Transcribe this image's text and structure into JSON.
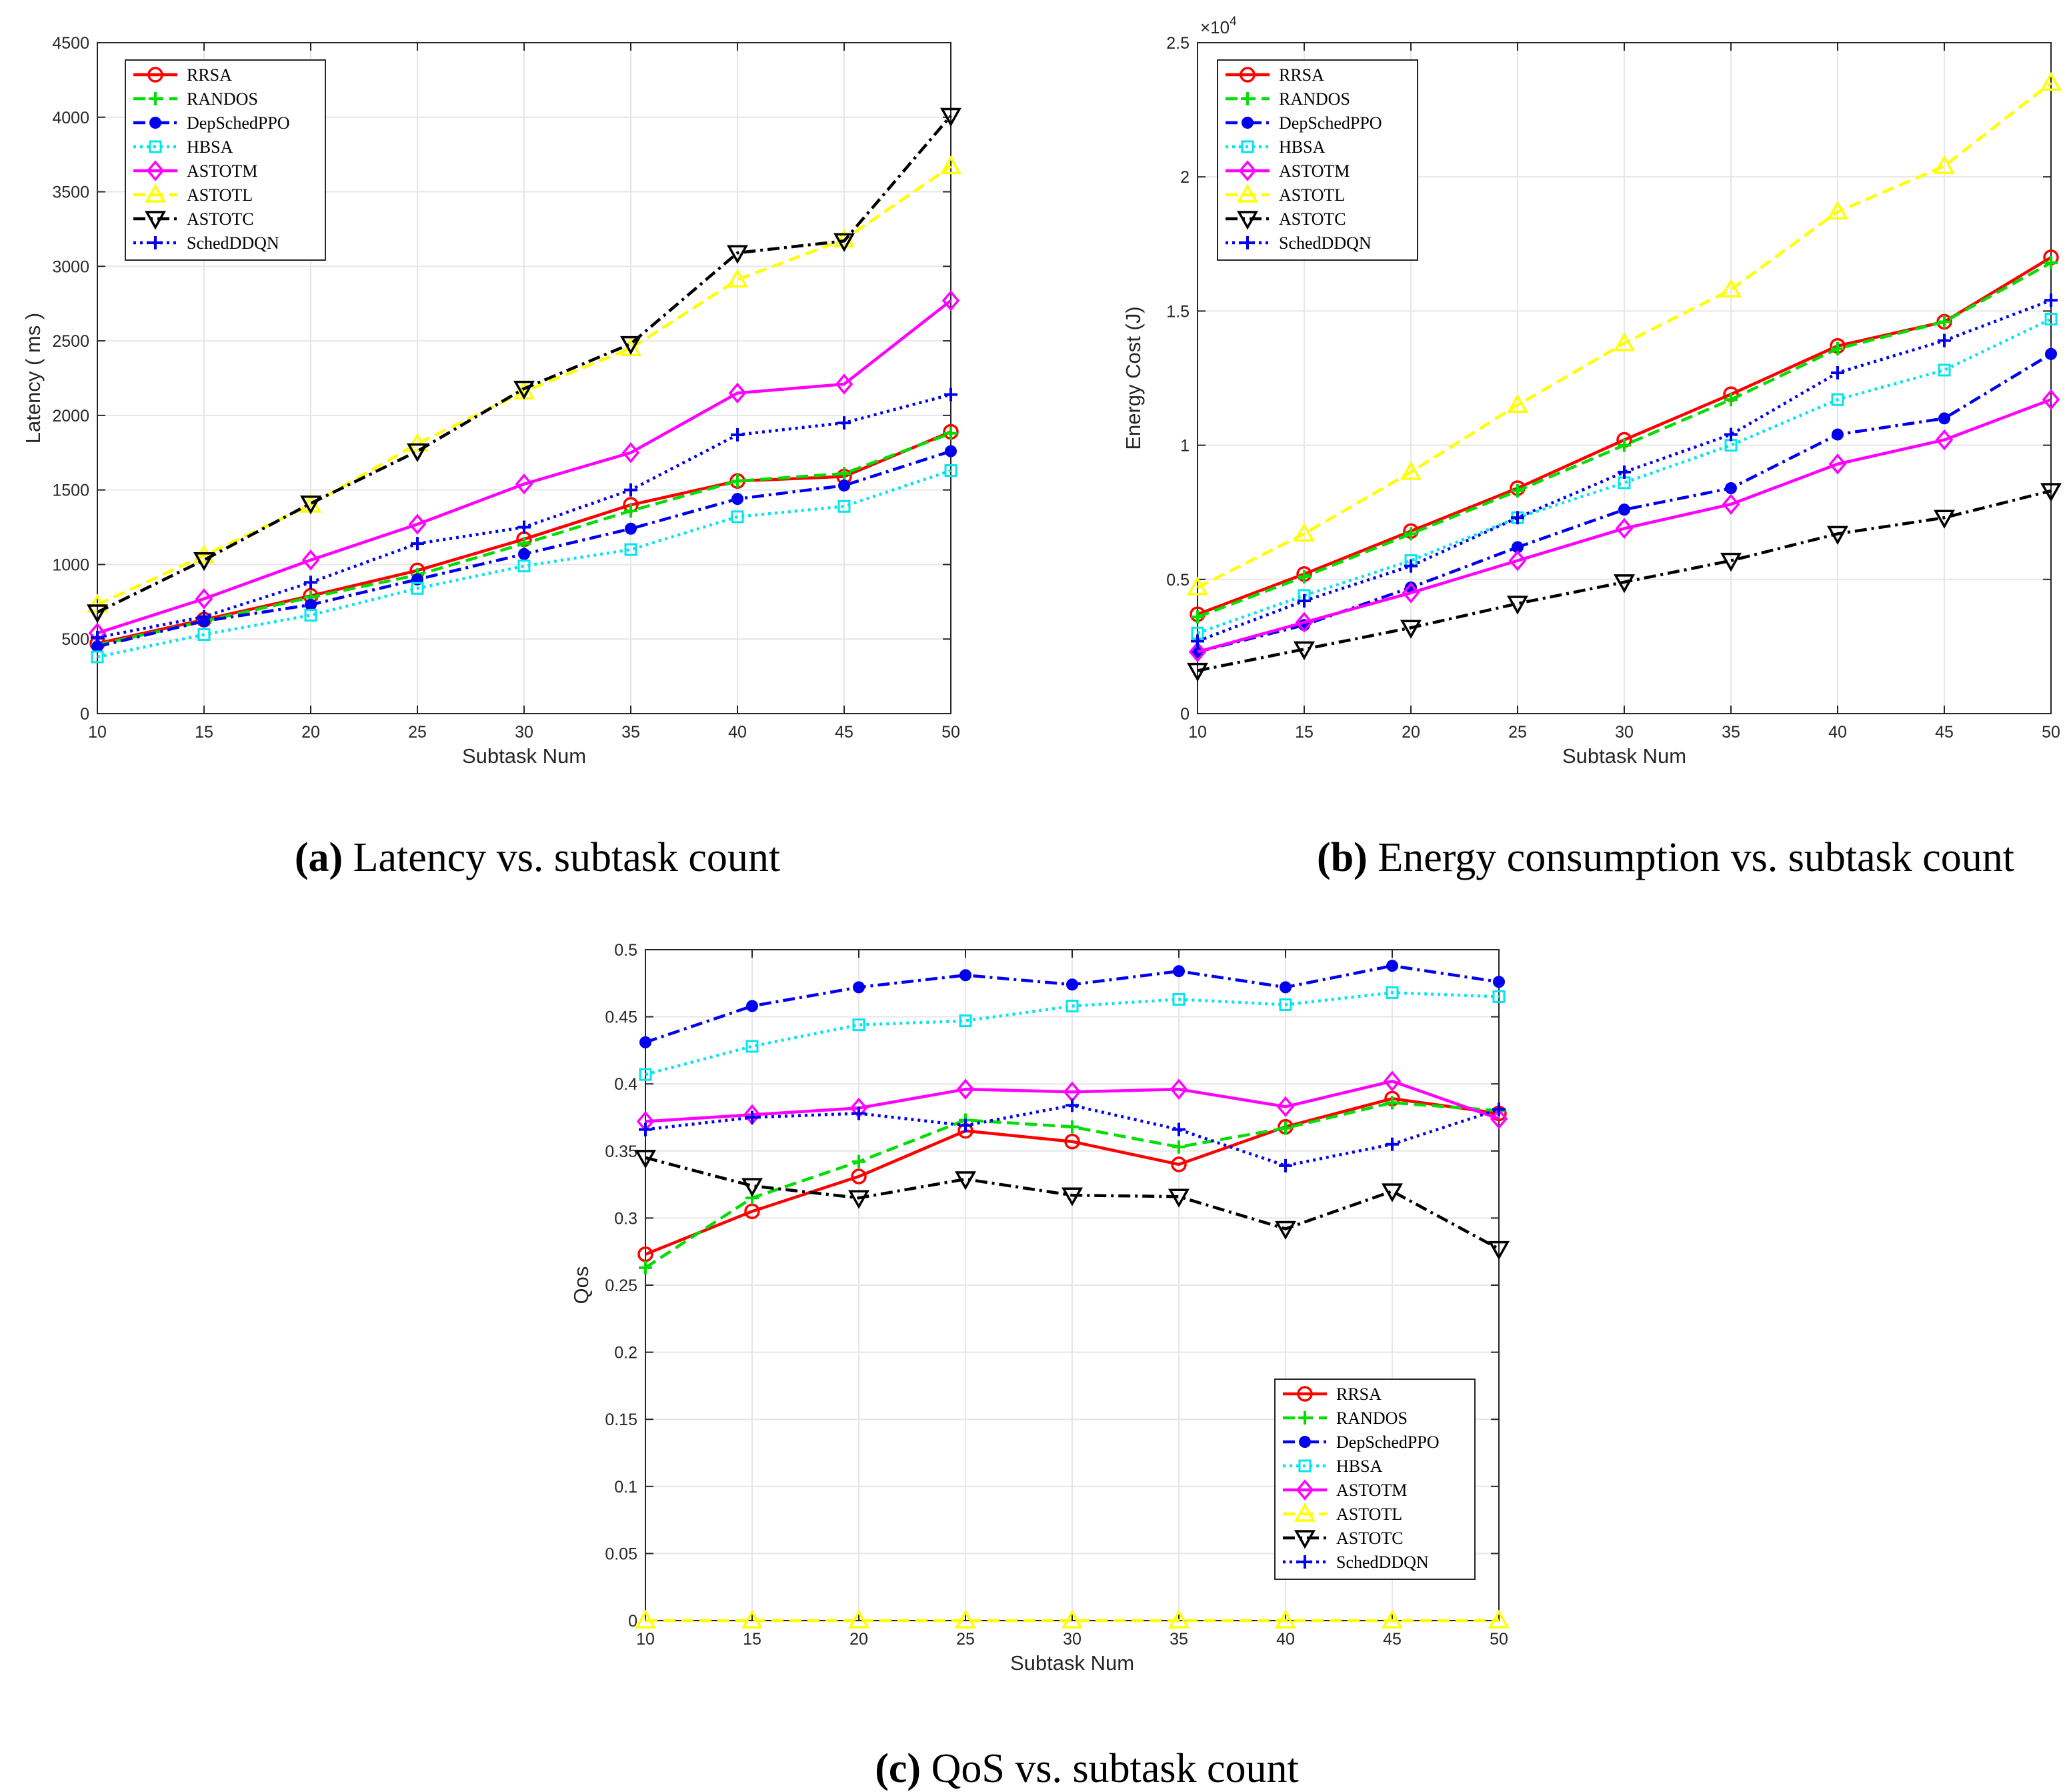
{
  "legend": [
    "RRSA",
    "RANDOS",
    "DepSchedPPO",
    "HBSA",
    "ASTOTM",
    "ASTOTL",
    "ASTOTC",
    "SchedDDQN"
  ],
  "series_style": {
    "RRSA": {
      "color": "#ff0000",
      "dash": "",
      "marker": "circle"
    },
    "RANDOS": {
      "color": "#00dd00",
      "dash": "18,9",
      "marker": "plus"
    },
    "DepSchedPPO": {
      "color": "#0000ee",
      "dash": "18,7,4,7",
      "marker": "dot"
    },
    "HBSA": {
      "color": "#00e5ee",
      "dash": "4,6",
      "marker": "square"
    },
    "ASTOTM": {
      "color": "#ff00ff",
      "dash": "",
      "marker": "diamond"
    },
    "ASTOTL": {
      "color": "#ffff00",
      "dash": "18,9",
      "marker": "triangle"
    },
    "ASTOTC": {
      "color": "#000000",
      "dash": "18,7,4,7",
      "marker": "triangle-down"
    },
    "SchedDDQN": {
      "color": "#0000ee",
      "dash": "4,6",
      "marker": "plus"
    }
  },
  "chart_data": [
    {
      "id": "a",
      "type": "line",
      "caption_letter": "(a)",
      "caption_text": " Latency vs. subtask count",
      "xlabel": "Subtask Num",
      "ylabel": "Latency ( ms )",
      "exponent_label": "",
      "x": [
        10,
        15,
        20,
        25,
        30,
        35,
        40,
        45,
        50
      ],
      "xlim": [
        10,
        50
      ],
      "ylim": [
        0,
        4500
      ],
      "xticks": [
        10,
        15,
        20,
        25,
        30,
        35,
        40,
        45,
        50
      ],
      "yticks": [
        0,
        500,
        1000,
        1500,
        2000,
        2500,
        3000,
        3500,
        4000,
        4500
      ],
      "ytick_labels": [
        "0",
        "500",
        "1000",
        "1500",
        "2000",
        "2500",
        "3000",
        "3500",
        "4000",
        "4500"
      ],
      "legend_position": "top-left",
      "series": [
        {
          "name": "RRSA",
          "values": [
            470,
            630,
            790,
            960,
            1170,
            1400,
            1560,
            1590,
            1890
          ]
        },
        {
          "name": "RANDOS",
          "values": [
            460,
            620,
            780,
            930,
            1140,
            1360,
            1560,
            1610,
            1880
          ]
        },
        {
          "name": "DepSchedPPO",
          "values": [
            450,
            620,
            730,
            900,
            1070,
            1240,
            1440,
            1530,
            1760
          ]
        },
        {
          "name": "HBSA",
          "values": [
            380,
            530,
            660,
            840,
            990,
            1100,
            1320,
            1390,
            1630
          ]
        },
        {
          "name": "ASTOTM",
          "values": [
            540,
            770,
            1030,
            1270,
            1540,
            1750,
            2150,
            2210,
            2770
          ]
        },
        {
          "name": "ASTOTL",
          "values": [
            730,
            1060,
            1400,
            1810,
            2160,
            2450,
            2910,
            3180,
            3670
          ]
        },
        {
          "name": "ASTOTC",
          "values": [
            680,
            1030,
            1410,
            1760,
            2180,
            2480,
            3090,
            3170,
            4010
          ]
        },
        {
          "name": "SchedDDQN",
          "values": [
            510,
            650,
            880,
            1140,
            1250,
            1500,
            1870,
            1950,
            2140
          ]
        }
      ]
    },
    {
      "id": "b",
      "type": "line",
      "caption_letter": "(b)",
      "caption_text": " Energy consumption vs. subtask count",
      "xlabel": "Subtask Num",
      "ylabel": "Energy Cost (J)",
      "exponent_label": "×10",
      "exponent_power": "4",
      "x": [
        10,
        15,
        20,
        25,
        30,
        35,
        40,
        45,
        50
      ],
      "xlim": [
        10,
        50
      ],
      "ylim": [
        0,
        25000
      ],
      "xticks": [
        10,
        15,
        20,
        25,
        30,
        35,
        40,
        45,
        50
      ],
      "yticks": [
        0,
        5000,
        10000,
        15000,
        20000,
        25000
      ],
      "ytick_labels": [
        "0",
        "0.5",
        "1",
        "1.5",
        "2",
        "2.5"
      ],
      "legend_position": "top-left",
      "series": [
        {
          "name": "RRSA",
          "values": [
            3700,
            5200,
            6800,
            8400,
            10200,
            11900,
            13700,
            14600,
            17000
          ]
        },
        {
          "name": "RANDOS",
          "values": [
            3600,
            5100,
            6700,
            8300,
            10000,
            11700,
            13600,
            14600,
            16800
          ]
        },
        {
          "name": "DepSchedPPO",
          "values": [
            2300,
            3300,
            4700,
            6200,
            7600,
            8400,
            10400,
            11000,
            13400
          ]
        },
        {
          "name": "HBSA",
          "values": [
            3000,
            4400,
            5700,
            7300,
            8600,
            10000,
            11700,
            12800,
            14700
          ]
        },
        {
          "name": "ASTOTM",
          "values": [
            2300,
            3400,
            4500,
            5700,
            6900,
            7800,
            9300,
            10200,
            11700
          ]
        },
        {
          "name": "ASTOTL",
          "values": [
            4700,
            6700,
            9000,
            11500,
            13800,
            15800,
            18700,
            20400,
            23500
          ]
        },
        {
          "name": "ASTOTC",
          "values": [
            1600,
            2400,
            3200,
            4100,
            4900,
            5700,
            6700,
            7300,
            8300
          ]
        },
        {
          "name": "SchedDDQN",
          "values": [
            2700,
            4200,
            5500,
            7300,
            9000,
            10400,
            12700,
            13900,
            15400
          ]
        }
      ]
    },
    {
      "id": "c",
      "type": "line",
      "caption_letter": "(c)",
      "caption_text": " QoS vs. subtask count",
      "xlabel": "Subtask Num",
      "ylabel": "Qos",
      "exponent_label": "",
      "x": [
        10,
        15,
        20,
        25,
        30,
        35,
        40,
        45,
        50
      ],
      "xlim": [
        10,
        50
      ],
      "ylim": [
        0,
        0.5
      ],
      "xticks": [
        10,
        15,
        20,
        25,
        30,
        35,
        40,
        45,
        50
      ],
      "yticks": [
        0,
        0.05,
        0.1,
        0.15,
        0.2,
        0.25,
        0.3,
        0.35,
        0.4,
        0.45,
        0.5
      ],
      "ytick_labels": [
        "0",
        "0.05",
        "0.1",
        "0.15",
        "0.2",
        "0.25",
        "0.3",
        "0.35",
        "0.4",
        "0.45",
        "0.5"
      ],
      "legend_position": "bottom-right",
      "series": [
        {
          "name": "RRSA",
          "values": [
            0.273,
            0.305,
            0.331,
            0.365,
            0.357,
            0.34,
            0.368,
            0.389,
            0.378
          ]
        },
        {
          "name": "RANDOS",
          "values": [
            0.263,
            0.315,
            0.342,
            0.373,
            0.368,
            0.353,
            0.367,
            0.386,
            0.38
          ]
        },
        {
          "name": "DepSchedPPO",
          "values": [
            0.431,
            0.458,
            0.472,
            0.481,
            0.474,
            0.484,
            0.472,
            0.488,
            0.476
          ]
        },
        {
          "name": "HBSA",
          "values": [
            0.407,
            0.428,
            0.444,
            0.447,
            0.458,
            0.463,
            0.459,
            0.468,
            0.465
          ]
        },
        {
          "name": "ASTOTM",
          "values": [
            0.372,
            0.377,
            0.382,
            0.396,
            0.394,
            0.396,
            0.383,
            0.402,
            0.374
          ]
        },
        {
          "name": "ASTOTL",
          "values": [
            0.0,
            0.0,
            0.0,
            0.0,
            0.0,
            0.0,
            0.0,
            0.0,
            0.0
          ]
        },
        {
          "name": "ASTOTC",
          "values": [
            0.345,
            0.324,
            0.315,
            0.329,
            0.317,
            0.316,
            0.292,
            0.32,
            0.277
          ]
        },
        {
          "name": "SchedDDQN",
          "values": [
            0.366,
            0.375,
            0.378,
            0.369,
            0.384,
            0.366,
            0.339,
            0.355,
            0.381
          ]
        }
      ]
    }
  ]
}
